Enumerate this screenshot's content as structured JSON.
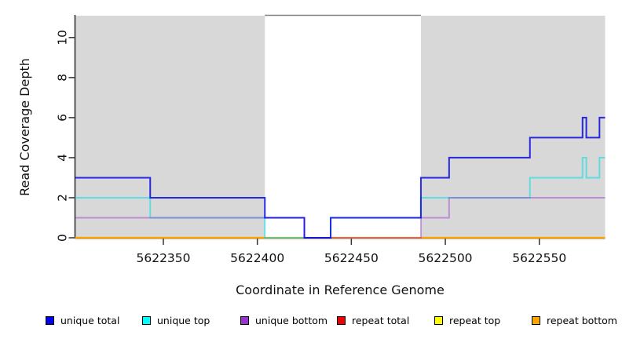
{
  "chart_data": {
    "type": "line",
    "subtype": "step-coverage",
    "title": "",
    "xlabel": "Coordinate in Reference Genome",
    "ylabel": "Read Coverage Depth",
    "x_range": [
      5622303,
      5622585
    ],
    "y_range": [
      0,
      11.1
    ],
    "x_ticks": [
      5622350,
      5622400,
      5622450,
      5622500,
      5622550
    ],
    "y_ticks": [
      0,
      2,
      4,
      6,
      8,
      10
    ],
    "grid": false,
    "legend_position": "bottom",
    "background_shading": {
      "color": "#d8d8d8",
      "regions": [
        [
          5622303,
          5622404
        ],
        [
          5622487,
          5622585
        ]
      ]
    },
    "gap_top_border": {
      "color": "#808080",
      "region": [
        5622404,
        5622487
      ]
    },
    "series": [
      {
        "name": "repeat total",
        "color": "#e00000",
        "opacity": 0.9,
        "width": 1.8,
        "steps": [
          [
            5622303,
            0
          ]
        ]
      },
      {
        "name": "repeat top",
        "color": "#ffff00",
        "opacity": 0.9,
        "width": 1.8,
        "steps": [
          [
            5622303,
            0
          ]
        ]
      },
      {
        "name": "repeat bottom",
        "color": "#ff9d00",
        "opacity": 0.95,
        "width": 2.2,
        "steps": [
          [
            5622303,
            0
          ]
        ]
      },
      {
        "name": "unique top",
        "color": "#00dde8",
        "opacity": 0.55,
        "width": 2,
        "steps": [
          [
            5622303,
            2
          ],
          [
            5622343,
            1
          ],
          [
            5622404,
            0
          ],
          [
            5622439,
            1
          ],
          [
            5622487,
            2
          ],
          [
            5622545,
            3
          ],
          [
            5622573,
            4
          ],
          [
            5622575,
            3
          ],
          [
            5622582,
            4
          ]
        ]
      },
      {
        "name": "unique bottom",
        "color": "#9932cc",
        "opacity": 0.45,
        "width": 2,
        "steps": [
          [
            5622303,
            1
          ],
          [
            5622425,
            0
          ],
          [
            5622487,
            1
          ],
          [
            5622502,
            2
          ]
        ]
      },
      {
        "name": "unique total",
        "color": "#0000e0",
        "opacity": 0.82,
        "width": 2,
        "steps": [
          [
            5622303,
            3
          ],
          [
            5622343,
            2
          ],
          [
            5622404,
            1
          ],
          [
            5622425,
            0
          ],
          [
            5622439,
            1
          ],
          [
            5622487,
            3
          ],
          [
            5622502,
            4
          ],
          [
            5622545,
            5
          ],
          [
            5622573,
            6
          ],
          [
            5622575,
            5
          ],
          [
            5622582,
            6
          ]
        ]
      }
    ],
    "legend": [
      {
        "label": "unique total",
        "color": "#0000ee"
      },
      {
        "label": "unique top",
        "color": "#00ffff"
      },
      {
        "label": "unique bottom",
        "color": "#9a32cd"
      },
      {
        "label": "repeat total",
        "color": "#ee0000"
      },
      {
        "label": "repeat top",
        "color": "#ffff00"
      },
      {
        "label": "repeat bottom",
        "color": "#ffa500"
      }
    ]
  }
}
